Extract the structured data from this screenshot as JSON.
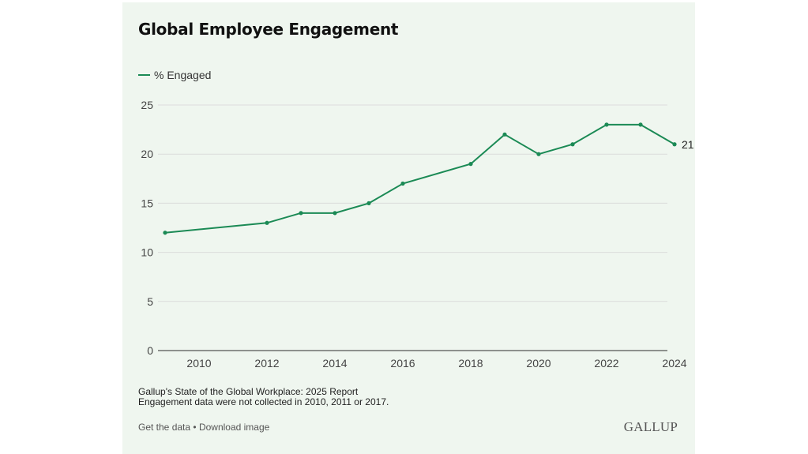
{
  "title": "Global Employee Engagement",
  "legend": "% Engaged",
  "colors": {
    "line": "#1b8a55",
    "background": "#eff6ef",
    "grid": "#dcdcdc"
  },
  "chart_data": {
    "type": "line",
    "title": "Global Employee Engagement",
    "xlabel": "",
    "ylabel": "",
    "xlim": [
      2009,
      2024
    ],
    "ylim": [
      0,
      25
    ],
    "x_ticks": [
      "2010",
      "2012",
      "2014",
      "2016",
      "2018",
      "2020",
      "2022",
      "2024"
    ],
    "y_ticks": [
      "0",
      "5",
      "10",
      "15",
      "20",
      "25"
    ],
    "grid": "horizontal",
    "legend_position": "top-left",
    "series": [
      {
        "name": "% Engaged",
        "x": [
          2009,
          2012,
          2013,
          2014,
          2015,
          2016,
          2018,
          2019,
          2020,
          2021,
          2022,
          2023,
          2024
        ],
        "y": [
          12,
          13,
          14,
          14,
          15,
          17,
          19,
          22,
          20,
          21,
          23,
          23,
          21
        ]
      }
    ],
    "end_label": "21"
  },
  "footer": {
    "source": "Gallup's State of the Global Workplace: 2025 Report",
    "note": "Engagement data were not collected in 2010, 2011 or 2017.",
    "get_data": "Get the data",
    "separator": "•",
    "download": "Download image",
    "logo": "GALLUP"
  }
}
